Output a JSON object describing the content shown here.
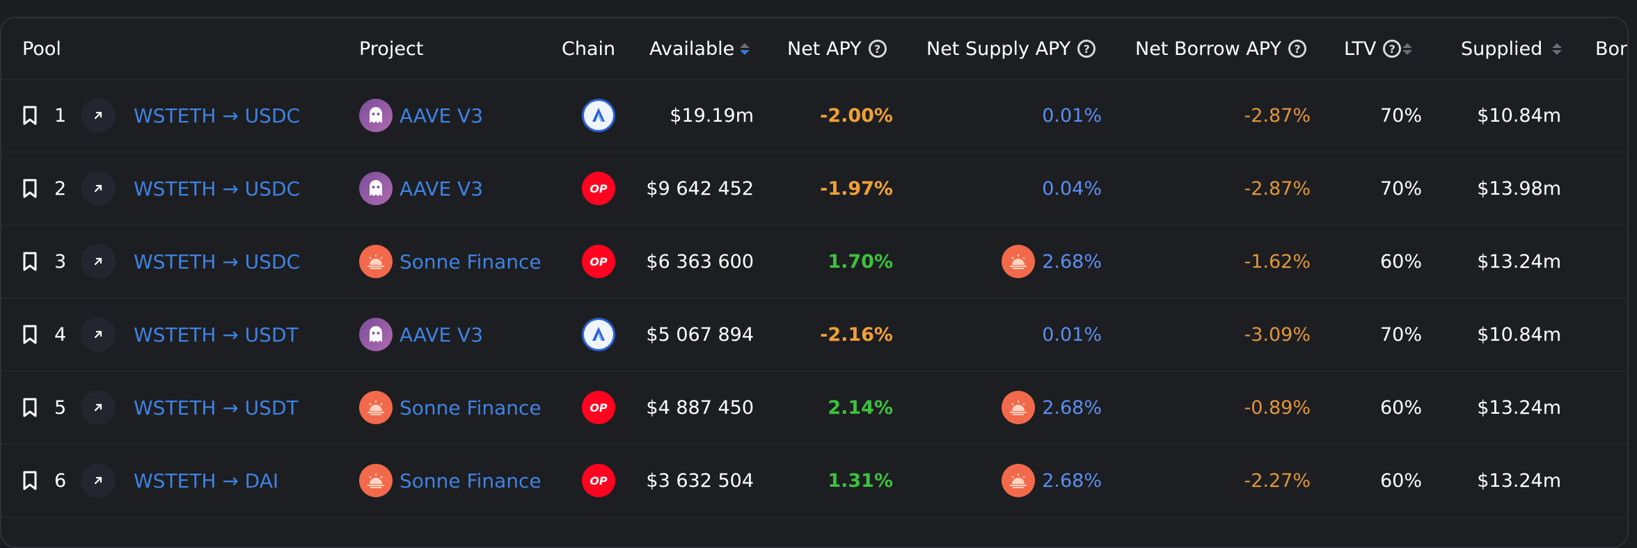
{
  "columns": {
    "pool": "Pool",
    "project": "Project",
    "chain": "Chain",
    "available": "Available",
    "net_apy": "Net APY",
    "net_supply_apy": "Net Supply APY",
    "net_borrow_apy": "Net Borrow APY",
    "ltv": "LTV",
    "supplied": "Supplied",
    "borrowed_partial": "Bor"
  },
  "icons": {
    "bookmark": "bookmark-icon",
    "external": "external-link-icon",
    "help": "help-icon",
    "sort": "sort-icon"
  },
  "colors": {
    "link": "#3f83e2",
    "negative": "#f1a034",
    "positive": "#3cc23c",
    "supply": "#5b8ff0",
    "borrow": "#e0963a"
  },
  "rows": [
    {
      "rank": "1",
      "pool": "WSTETH → USDC",
      "project": "AAVE V3",
      "project_logo": "aave",
      "chain": "arbitrum",
      "chain_label": "",
      "available": "$19.19m",
      "net_apy": "-2.00%",
      "net_apy_sign": "neg",
      "net_supply_apy": "0.01%",
      "supply_reward": false,
      "net_borrow_apy": "-2.87%",
      "ltv": "70%",
      "supplied": "$10.84m"
    },
    {
      "rank": "2",
      "pool": "WSTETH → USDC",
      "project": "AAVE V3",
      "project_logo": "aave",
      "chain": "optimism",
      "chain_label": "OP",
      "available": "$9 642 452",
      "net_apy": "-1.97%",
      "net_apy_sign": "neg",
      "net_supply_apy": "0.04%",
      "supply_reward": false,
      "net_borrow_apy": "-2.87%",
      "ltv": "70%",
      "supplied": "$13.98m"
    },
    {
      "rank": "3",
      "pool": "WSTETH → USDC",
      "project": "Sonne Finance",
      "project_logo": "sonne",
      "chain": "optimism",
      "chain_label": "OP",
      "available": "$6 363 600",
      "net_apy": "1.70%",
      "net_apy_sign": "pos",
      "net_supply_apy": "2.68%",
      "supply_reward": true,
      "net_borrow_apy": "-1.62%",
      "ltv": "60%",
      "supplied": "$13.24m"
    },
    {
      "rank": "4",
      "pool": "WSTETH → USDT",
      "project": "AAVE V3",
      "project_logo": "aave",
      "chain": "arbitrum",
      "chain_label": "",
      "available": "$5 067 894",
      "net_apy": "-2.16%",
      "net_apy_sign": "neg",
      "net_supply_apy": "0.01%",
      "supply_reward": false,
      "net_borrow_apy": "-3.09%",
      "ltv": "70%",
      "supplied": "$10.84m"
    },
    {
      "rank": "5",
      "pool": "WSTETH → USDT",
      "project": "Sonne Finance",
      "project_logo": "sonne",
      "chain": "optimism",
      "chain_label": "OP",
      "available": "$4 887 450",
      "net_apy": "2.14%",
      "net_apy_sign": "pos",
      "net_supply_apy": "2.68%",
      "supply_reward": true,
      "net_borrow_apy": "-0.89%",
      "ltv": "60%",
      "supplied": "$13.24m"
    },
    {
      "rank": "6",
      "pool": "WSTETH → DAI",
      "project": "Sonne Finance",
      "project_logo": "sonne",
      "chain": "optimism",
      "chain_label": "OP",
      "available": "$3 632 504",
      "net_apy": "1.31%",
      "net_apy_sign": "pos",
      "net_supply_apy": "2.68%",
      "supply_reward": true,
      "net_borrow_apy": "-2.27%",
      "ltv": "60%",
      "supplied": "$13.24m"
    }
  ]
}
